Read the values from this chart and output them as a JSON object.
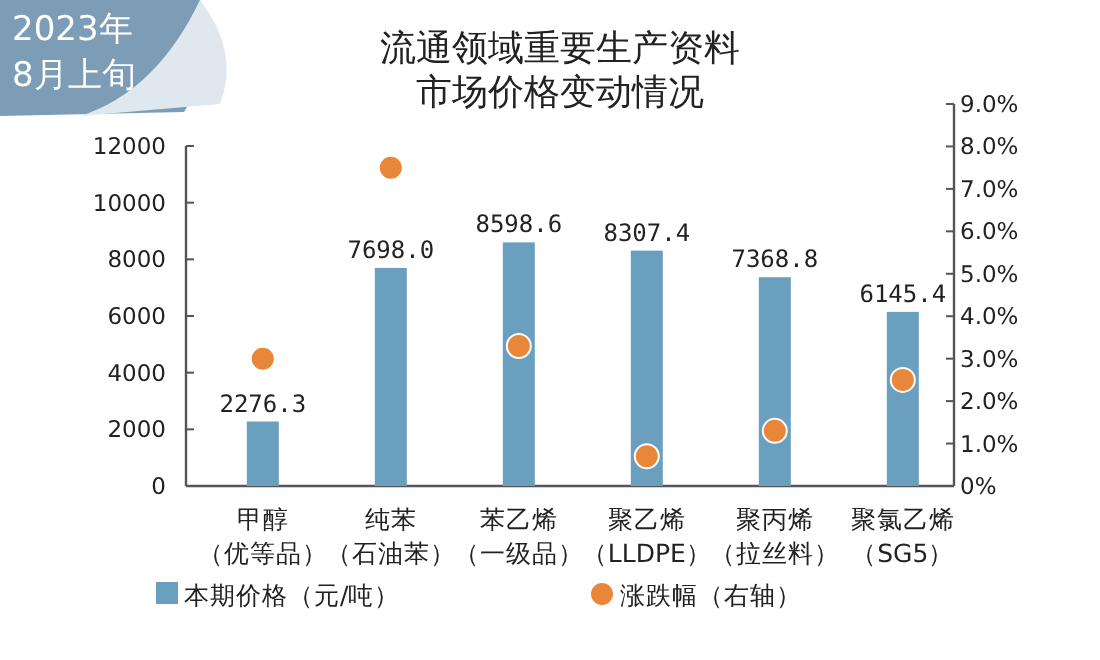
{
  "chart_data": {
    "type": "bar",
    "title": "流通领域重要生产资料市场价格变动情况",
    "annotations": [
      "2023年\n8月上旬"
    ],
    "categories": [
      "甲醇（优等品）",
      "纯苯（石油苯）",
      "苯乙烯（一级品）",
      "聚乙烯（LLDPE）",
      "聚丙烯（拉丝料）",
      "聚氯乙烯（SG5）"
    ],
    "series": [
      {
        "name": "本期价格（元/吨）",
        "color": "#6a9fc0",
        "values": [
          2276.3,
          7698.0,
          8598.6,
          8307.4,
          7368.8,
          6145.4
        ],
        "value_labels": [
          "2276.3",
          "7698.0",
          "8598.6",
          "8307.4",
          "7368.8",
          "6145.4"
        ]
      },
      {
        "name": "涨跌幅（右轴）",
        "type": "scatter",
        "axis": "y2",
        "color": "#e8873a",
        "marker": "circle",
        "values": [
          3.0,
          7.5,
          3.3,
          0.7,
          1.3,
          2.5
        ]
      }
    ],
    "ylim": [
      0,
      12000
    ],
    "yticks": [
      0,
      2000,
      4000,
      6000,
      8000,
      10000,
      12000
    ],
    "y2lim": [
      0,
      9
    ],
    "y2ticks": [
      {
        "value": 0,
        "label": "0%"
      },
      {
        "value": 1,
        "label": "1.0%"
      },
      {
        "value": 2,
        "label": "2.0%"
      },
      {
        "value": 3,
        "label": "3.0%"
      },
      {
        "value": 4,
        "label": "4.0%"
      },
      {
        "value": 5,
        "label": "5.0%"
      },
      {
        "value": 6,
        "label": "6.0%"
      },
      {
        "value": 7,
        "label": "7.0%"
      },
      {
        "value": 8,
        "label": "8.0%"
      },
      {
        "value": 9,
        "label": "9.0%"
      }
    ],
    "legend": "bottom",
    "grid": false
  }
}
